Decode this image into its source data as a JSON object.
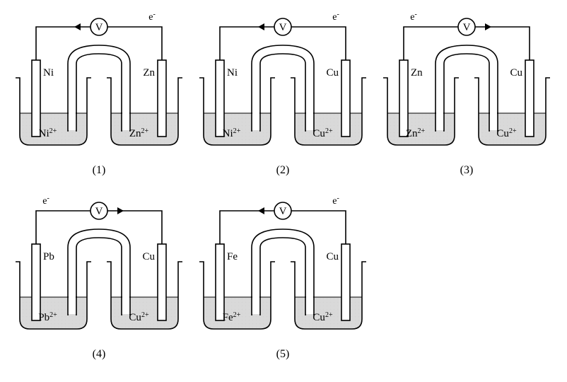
{
  "stroke": "#000000",
  "grid_color": "#d4d4d4",
  "fill_solution": "#d9d9d9",
  "bg": "#ffffff",
  "text_color": "#000000",
  "font_family": "Times New Roman, serif",
  "fontsize_electrode": 15,
  "fontsize_ion": 15,
  "fontsize_meter": 15,
  "fontsize_elabel": 14,
  "fontsize_number": 16,
  "salt_bridge_fill": "#ffffff",
  "electrode_fill": "#ffffff",
  "meter_fill": "#ffffff",
  "stroke_w": 1.6,
  "cells": [
    {
      "num": "(1)",
      "left_el": "Ni",
      "left_ion": "Ni",
      "left_charge": "2+",
      "right_el": "Zn",
      "right_ion": "Zn",
      "right_charge": "2+",
      "arrow_dir": "left",
      "elabel_side": "right"
    },
    {
      "num": "(2)",
      "left_el": "Ni",
      "left_ion": "Ni",
      "left_charge": "2+",
      "right_el": "Cu",
      "right_ion": "Cu",
      "right_charge": "2+",
      "arrow_dir": "left",
      "elabel_side": "right"
    },
    {
      "num": "(3)",
      "left_el": "Zn",
      "left_ion": "Zn",
      "left_charge": "2+",
      "right_el": "Cu",
      "right_ion": "Cu",
      "right_charge": "2+",
      "arrow_dir": "right",
      "elabel_side": "left"
    },
    {
      "num": "(4)",
      "left_el": "Pb",
      "left_ion": "Pb",
      "left_charge": "2+",
      "right_el": "Cu",
      "right_ion": "Cu",
      "right_charge": "2+",
      "arrow_dir": "right",
      "elabel_side": "left"
    },
    {
      "num": "(5)",
      "left_el": "Fe",
      "left_ion": "Fe",
      "left_charge": "2+",
      "right_el": "Cu",
      "right_ion": "Cu",
      "right_charge": "2+",
      "arrow_dir": "left",
      "elabel_side": "right"
    }
  ]
}
